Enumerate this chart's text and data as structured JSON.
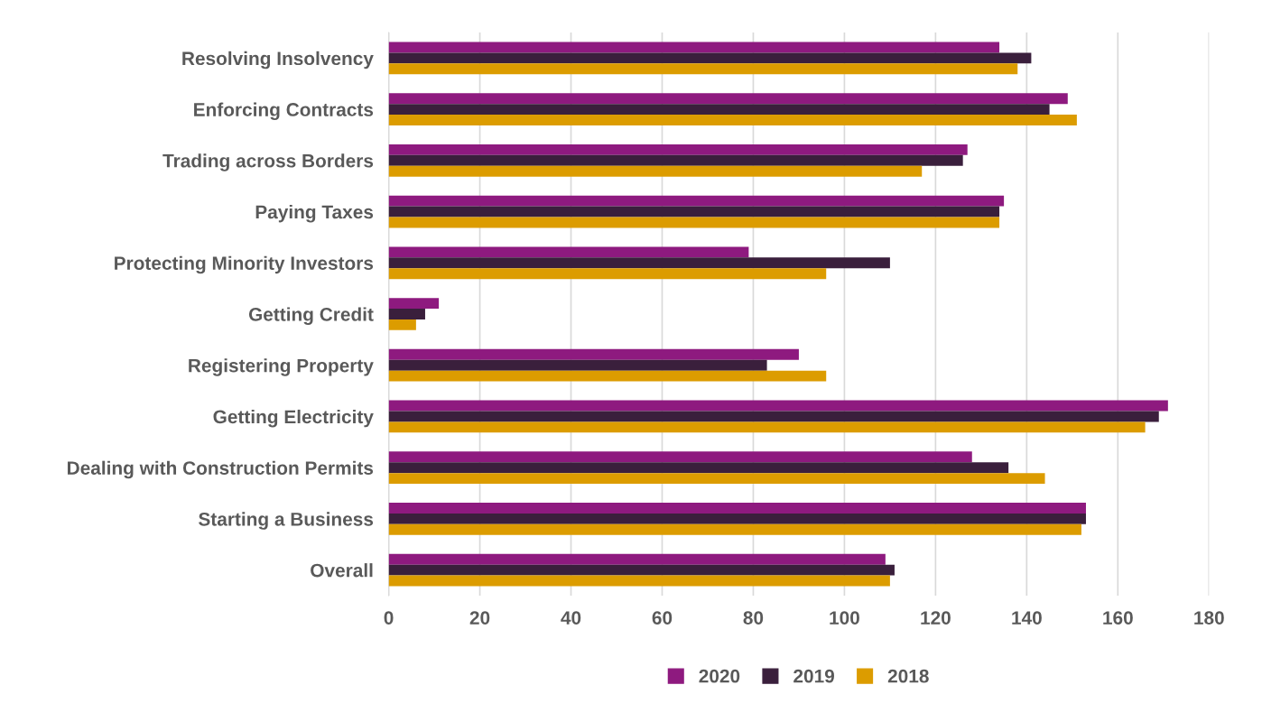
{
  "chart_data": {
    "type": "bar",
    "orientation": "horizontal",
    "categories": [
      "Resolving Insolvency",
      "Enforcing Contracts",
      "Trading across Borders",
      "Paying Taxes",
      "Protecting Minority Investors",
      "Getting Credit",
      "Registering Property",
      "Getting Electricity",
      "Dealing with Construction Permits",
      "Starting a Business",
      "Overall"
    ],
    "series": [
      {
        "name": "2020",
        "color": "#8e1a7f",
        "values": [
          134,
          149,
          127,
          135,
          79,
          11,
          90,
          171,
          128,
          153,
          109
        ]
      },
      {
        "name": "2019",
        "color": "#3a1f3c",
        "values": [
          141,
          145,
          126,
          134,
          110,
          8,
          83,
          169,
          136,
          153,
          111
        ]
      },
      {
        "name": "2018",
        "color": "#dc9c00",
        "values": [
          138,
          151,
          117,
          134,
          96,
          6,
          96,
          166,
          144,
          152,
          110
        ]
      }
    ],
    "xlim": [
      0,
      180
    ],
    "xticks": [
      0,
      20,
      40,
      60,
      80,
      100,
      120,
      140,
      160,
      180
    ],
    "grid": "x",
    "legend": "bottom"
  }
}
